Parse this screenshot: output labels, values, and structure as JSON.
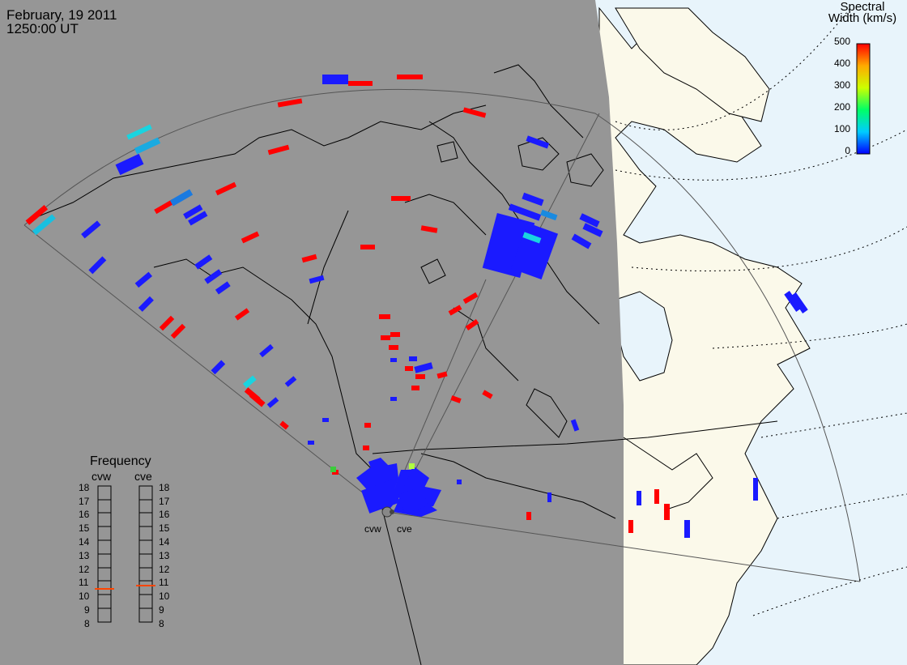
{
  "header": {
    "date": "February, 19 2011",
    "time": "1250:00 UT"
  },
  "colorbar": {
    "title_line1": "Spectral",
    "title_line2": "Width (km/s)",
    "ticks": [
      "500",
      "400",
      "300",
      "200",
      "100",
      "0"
    ],
    "colors": [
      "#ff0000",
      "#ff8000",
      "#ffff00",
      "#00ff00",
      "#00ffff",
      "#0000ff"
    ]
  },
  "frequency": {
    "title": "Frequency",
    "radars": [
      "cvw",
      "cve"
    ],
    "ticks": [
      "18",
      "17",
      "16",
      "15",
      "14",
      "13",
      "12",
      "11",
      "10",
      "9",
      "8"
    ],
    "marker_color": "#ff4500"
  },
  "stations": [
    "cvw",
    "cve"
  ],
  "colors": {
    "night": "#969696",
    "land": "#fbf9ea",
    "ocean": "#e8f4fb",
    "high_width": "#ff0000",
    "low_width": "#1a1aff",
    "mid_width": "#19d4e0"
  }
}
